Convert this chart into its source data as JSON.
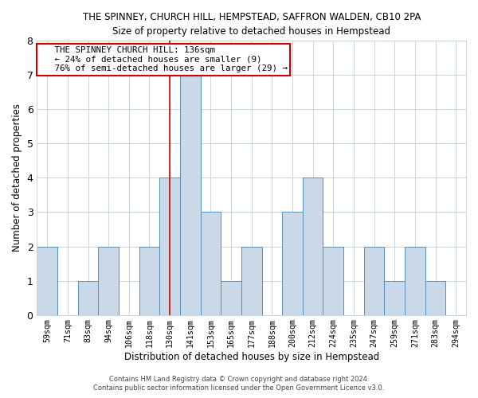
{
  "title_line1": "THE SPINNEY, CHURCH HILL, HEMPSTEAD, SAFFRON WALDEN, CB10 2PA",
  "title_line2": "Size of property relative to detached houses in Hempstead",
  "xlabel": "Distribution of detached houses by size in Hempstead",
  "ylabel": "Number of detached properties",
  "categories": [
    "59sqm",
    "71sqm",
    "83sqm",
    "94sqm",
    "106sqm",
    "118sqm",
    "130sqm",
    "141sqm",
    "153sqm",
    "165sqm",
    "177sqm",
    "188sqm",
    "200sqm",
    "212sqm",
    "224sqm",
    "235sqm",
    "247sqm",
    "259sqm",
    "271sqm",
    "283sqm",
    "294sqm"
  ],
  "values": [
    2,
    0,
    1,
    2,
    0,
    2,
    4,
    7,
    3,
    1,
    2,
    0,
    3,
    4,
    2,
    0,
    2,
    1,
    2,
    1,
    0
  ],
  "bar_color": "#c9d9e8",
  "bar_edgecolor": "#5b8db8",
  "vline_index": 6.5,
  "annotation_line1": "   THE SPINNEY CHURCH HILL: 136sqm",
  "annotation_line2": "   ← 24% of detached houses are smaller (9)",
  "annotation_line3": "   76% of semi-detached houses are larger (29) →",
  "ylim": [
    0,
    8
  ],
  "yticks": [
    0,
    1,
    2,
    3,
    4,
    5,
    6,
    7,
    8
  ],
  "footer1": "Contains HM Land Registry data © Crown copyright and database right 2024.",
  "footer2": "Contains public sector information licensed under the Open Government Licence v3.0.",
  "vline_color": "#cc0000",
  "annotation_box_edgecolor": "#cc0000",
  "background_color": "#ffffff",
  "grid_color": "#c8d4de"
}
